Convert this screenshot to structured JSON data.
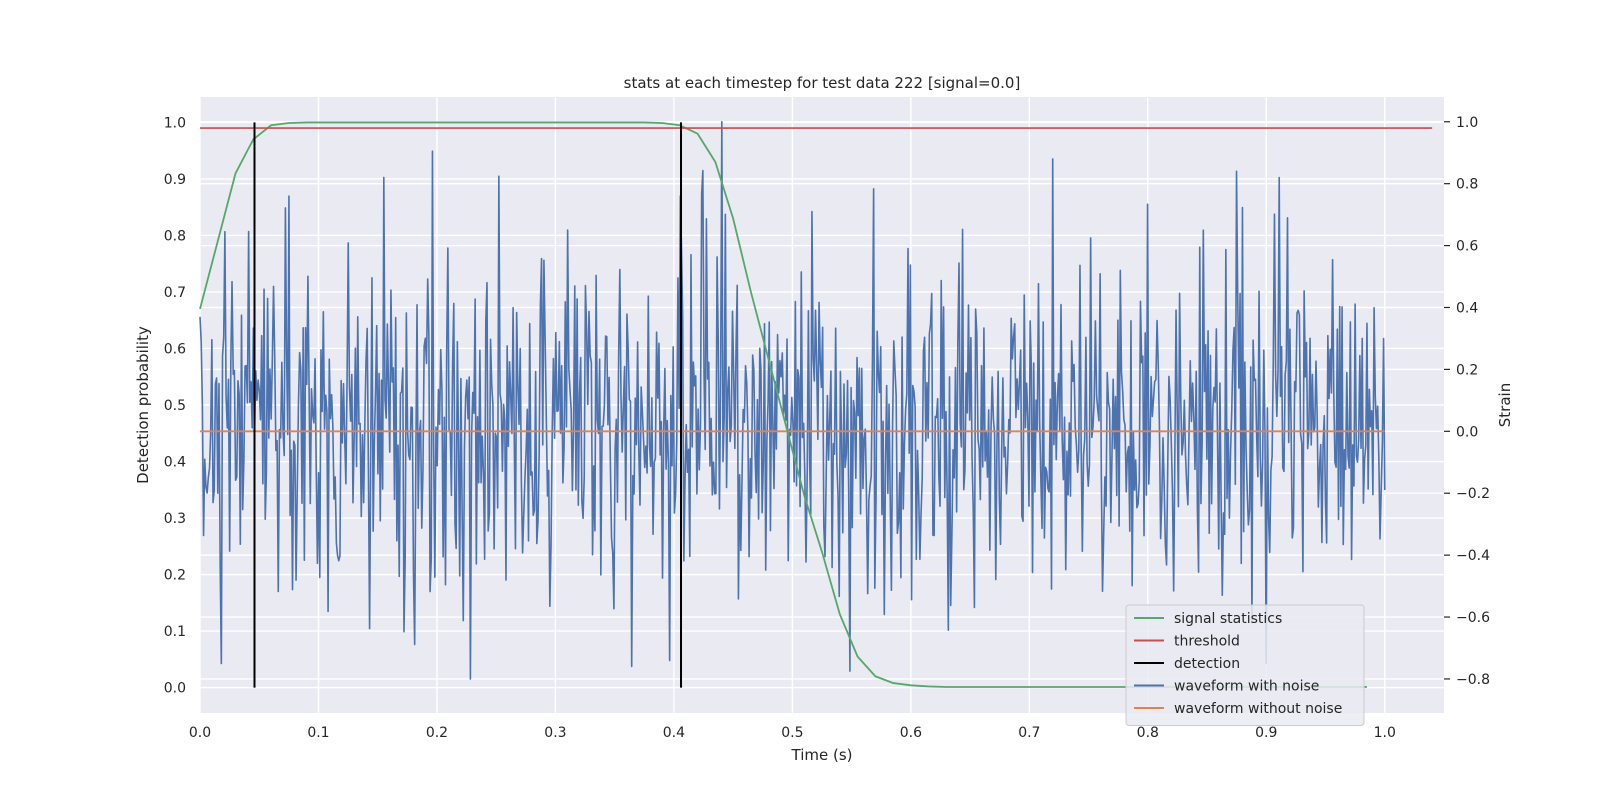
{
  "chart_data": {
    "type": "line",
    "title": "stats at each timestep for test data 222 [signal=0.0]",
    "xlabel": "Time (s)",
    "ylabel_left": "Detection probability",
    "ylabel_right": "Strain",
    "xlim": [
      0.0,
      1.05
    ],
    "ylim_left": [
      -0.045,
      1.045
    ],
    "ylim_right": [
      -0.91,
      1.08
    ],
    "x_ticks": [
      0.0,
      0.1,
      0.2,
      0.3,
      0.4,
      0.5,
      0.6,
      0.7,
      0.8,
      0.9,
      1.0
    ],
    "x_tick_labels": [
      "0.0",
      "0.1",
      "0.2",
      "0.3",
      "0.4",
      "0.5",
      "0.6",
      "0.7",
      "0.8",
      "0.9",
      "1.0"
    ],
    "y_ticks_left": [
      0.0,
      0.1,
      0.2,
      0.3,
      0.4,
      0.5,
      0.6,
      0.7,
      0.8,
      0.9,
      1.0
    ],
    "y_tick_labels_left": [
      "0.0",
      "0.1",
      "0.2",
      "0.3",
      "0.4",
      "0.5",
      "0.6",
      "0.7",
      "0.8",
      "0.9",
      "1.0"
    ],
    "y_ticks_right": [
      -0.8,
      -0.6,
      -0.4,
      -0.2,
      0.0,
      0.2,
      0.4,
      0.6,
      0.8,
      1.0
    ],
    "y_tick_labels_right": [
      "−0.8",
      "−0.6",
      "−0.4",
      "−0.2",
      "0.0",
      "0.2",
      "0.4",
      "0.6",
      "0.8",
      "1.0"
    ],
    "grid": true,
    "legend_position": "lower-right",
    "series": [
      {
        "name": "signal statistics",
        "axis": "left",
        "color": "#55a868",
        "x": [
          0.0,
          0.015,
          0.03,
          0.045,
          0.06,
          0.075,
          0.09,
          0.105,
          0.12,
          0.135,
          0.15,
          0.165,
          0.18,
          0.195,
          0.21,
          0.225,
          0.24,
          0.255,
          0.27,
          0.285,
          0.3,
          0.315,
          0.33,
          0.345,
          0.36,
          0.375,
          0.39,
          0.405,
          0.42,
          0.435,
          0.45,
          0.465,
          0.48,
          0.495,
          0.51,
          0.525,
          0.54,
          0.555,
          0.57,
          0.585,
          0.6,
          0.615,
          0.63,
          0.645,
          0.66,
          0.675,
          0.69,
          0.705,
          0.72,
          0.735,
          0.75,
          0.765,
          0.78,
          0.795,
          0.81,
          0.825,
          0.84,
          0.855,
          0.87,
          0.885,
          0.9,
          0.915,
          0.93,
          0.945,
          0.96,
          0.975,
          0.985
        ],
        "y": [
          0.67,
          0.79,
          0.91,
          0.97,
          0.995,
          0.999,
          1.0,
          1.0,
          1.0,
          1.0,
          1.0,
          1.0,
          1.0,
          1.0,
          1.0,
          1.0,
          1.0,
          1.0,
          1.0,
          1.0,
          1.0,
          1.0,
          1.0,
          1.0,
          1.0,
          1.0,
          0.999,
          0.995,
          0.98,
          0.93,
          0.83,
          0.7,
          0.58,
          0.46,
          0.34,
          0.24,
          0.13,
          0.055,
          0.02,
          0.008,
          0.004,
          0.002,
          0.001,
          0.001,
          0.001,
          0.001,
          0.001,
          0.001,
          0.001,
          0.001,
          0.001,
          0.001,
          0.001,
          0.001,
          0.001,
          0.001,
          0.001,
          0.001,
          0.001,
          0.001,
          0.001,
          0.001,
          0.001,
          0.001,
          0.001,
          0.001,
          0.001
        ]
      },
      {
        "name": "threshold",
        "axis": "left",
        "color": "#c44e52",
        "x": [
          0.0,
          1.04
        ],
        "y": [
          0.99,
          0.99
        ]
      },
      {
        "name": "detection",
        "axis": "left",
        "color": "#000000",
        "segments": [
          {
            "x": 0.046,
            "y": [
              0.0,
              1.0
            ]
          },
          {
            "x": 0.406,
            "y": [
              0.0,
              1.0
            ]
          }
        ]
      },
      {
        "name": "waveform with noise",
        "axis": "right",
        "color": "#4c72b0",
        "x_range": [
          0.0,
          1.0
        ],
        "n_points": 1000,
        "sample_points": [
          {
            "x": 0.0,
            "y": 0.37
          },
          {
            "x": 0.018,
            "y": -0.75
          },
          {
            "x": 0.075,
            "y": 0.76
          },
          {
            "x": 0.155,
            "y": 0.82
          },
          {
            "x": 0.228,
            "y": -0.8
          },
          {
            "x": 0.31,
            "y": 0.65
          },
          {
            "x": 0.405,
            "y": 0.76
          },
          {
            "x": 0.44,
            "y": 1.0
          },
          {
            "x": 0.72,
            "y": 0.88
          },
          {
            "x": 0.875,
            "y": 0.84
          },
          {
            "x": 0.9,
            "y": -0.75
          },
          {
            "x": 1.0,
            "y": -0.19
          }
        ],
        "y_amplitude_range": [
          -0.8,
          1.0
        ]
      },
      {
        "name": "waveform without noise",
        "axis": "right",
        "color": "#dd8452",
        "x": [
          0.0,
          1.0
        ],
        "y": [
          0.0,
          0.0
        ]
      }
    ]
  }
}
